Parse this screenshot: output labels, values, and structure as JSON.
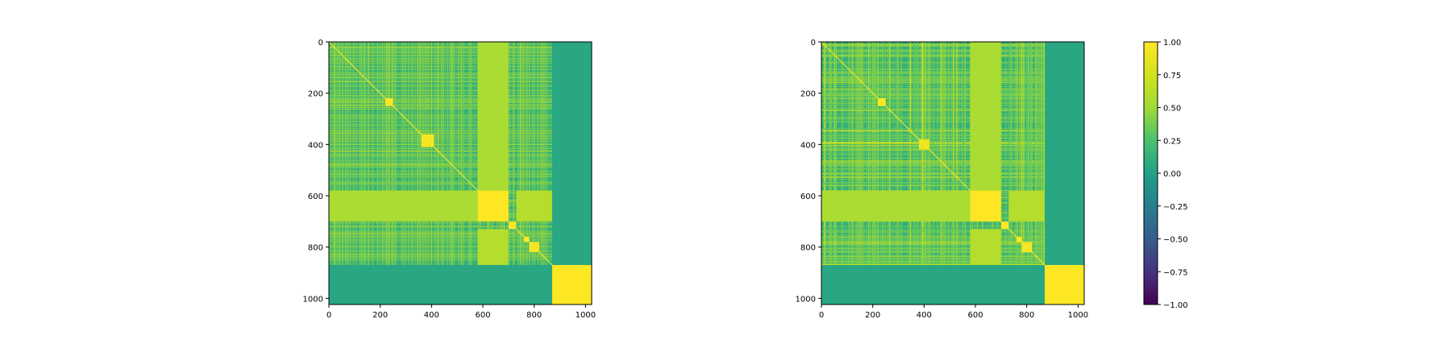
{
  "chart_data": [
    {
      "type": "heatmap",
      "title": "",
      "xlabel": "",
      "ylabel": "",
      "x_range": [
        0,
        1024
      ],
      "y_range": [
        0,
        1024
      ],
      "y_inverted": true,
      "x_ticks": [
        0,
        200,
        400,
        600,
        800,
        1000
      ],
      "y_ticks": [
        0,
        200,
        400,
        600,
        800,
        1000
      ],
      "colormap": "viridis",
      "value_range": [
        -1.0,
        1.0
      ],
      "base_value": 0.1,
      "diagonal_value": 1.0,
      "blocks": [
        {
          "rows": [
            220,
            250
          ],
          "cols": [
            220,
            250
          ],
          "value": 1.0
        },
        {
          "rows": [
            360,
            410
          ],
          "cols": [
            360,
            410
          ],
          "value": 0.95
        },
        {
          "rows": [
            580,
            700
          ],
          "cols": [
            580,
            700
          ],
          "value": 1.0
        },
        {
          "rows": [
            700,
            730
          ],
          "cols": [
            700,
            730
          ],
          "value": 1.0
        },
        {
          "rows": [
            760,
            780
          ],
          "cols": [
            760,
            780
          ],
          "value": 1.0
        },
        {
          "rows": [
            780,
            820
          ],
          "cols": [
            780,
            820
          ],
          "value": 0.95
        },
        {
          "rows": [
            870,
            1024
          ],
          "cols": [
            870,
            1024
          ],
          "value": 1.0
        }
      ],
      "bands": [
        {
          "rows": [
            0,
            580
          ],
          "cols": [
            580,
            700
          ],
          "value": 0.55
        },
        {
          "rows": [
            580,
            700
          ],
          "cols": [
            0,
            580
          ],
          "value": 0.55
        },
        {
          "rows": [
            730,
            870
          ],
          "cols": [
            580,
            700
          ],
          "value": 0.6
        },
        {
          "rows": [
            580,
            700
          ],
          "cols": [
            730,
            870
          ],
          "value": 0.6
        },
        {
          "rows": [
            0,
            870
          ],
          "cols": [
            870,
            1024
          ],
          "value": 0.05
        },
        {
          "rows": [
            870,
            1024
          ],
          "cols": [
            0,
            870
          ],
          "value": 0.05
        }
      ]
    },
    {
      "type": "heatmap",
      "title": "",
      "xlabel": "",
      "ylabel": "",
      "x_range": [
        0,
        1024
      ],
      "y_range": [
        0,
        1024
      ],
      "y_inverted": true,
      "x_ticks": [
        0,
        200,
        400,
        600,
        800,
        1000
      ],
      "y_ticks": [
        0,
        200,
        400,
        600,
        800,
        1000
      ],
      "colormap": "viridis",
      "value_range": [
        -1.0,
        1.0
      ],
      "base_value": 0.1,
      "diagonal_value": 1.0,
      "blocks": [
        {
          "rows": [
            220,
            250
          ],
          "cols": [
            220,
            250
          ],
          "value": 1.0
        },
        {
          "rows": [
            380,
            420
          ],
          "cols": [
            380,
            420
          ],
          "value": 0.9
        },
        {
          "rows": [
            580,
            700
          ],
          "cols": [
            580,
            700
          ],
          "value": 1.0
        },
        {
          "rows": [
            700,
            730
          ],
          "cols": [
            700,
            730
          ],
          "value": 1.0
        },
        {
          "rows": [
            760,
            780
          ],
          "cols": [
            760,
            780
          ],
          "value": 1.0
        },
        {
          "rows": [
            780,
            820
          ],
          "cols": [
            780,
            820
          ],
          "value": 0.95
        },
        {
          "rows": [
            870,
            1024
          ],
          "cols": [
            870,
            1024
          ],
          "value": 1.0
        }
      ],
      "bands": [
        {
          "rows": [
            0,
            580
          ],
          "cols": [
            580,
            700
          ],
          "value": 0.55
        },
        {
          "rows": [
            580,
            700
          ],
          "cols": [
            0,
            580
          ],
          "value": 0.55
        },
        {
          "rows": [
            730,
            870
          ],
          "cols": [
            580,
            700
          ],
          "value": 0.6
        },
        {
          "rows": [
            580,
            700
          ],
          "cols": [
            730,
            870
          ],
          "value": 0.6
        },
        {
          "rows": [
            0,
            870
          ],
          "cols": [
            870,
            1024
          ],
          "value": 0.05
        },
        {
          "rows": [
            870,
            1024
          ],
          "cols": [
            0,
            870
          ],
          "value": 0.05
        }
      ]
    }
  ],
  "colorbar": {
    "colormap": "viridis",
    "range": [
      -1.0,
      1.0
    ],
    "ticks": [
      1.0,
      0.75,
      0.5,
      0.25,
      0.0,
      -0.25,
      -0.5,
      -0.75,
      -1.0
    ],
    "tick_labels": [
      "1.00",
      "0.75",
      "0.50",
      "0.25",
      "0.00",
      "−0.25",
      "−0.50",
      "−0.75",
      "−1.00"
    ]
  }
}
